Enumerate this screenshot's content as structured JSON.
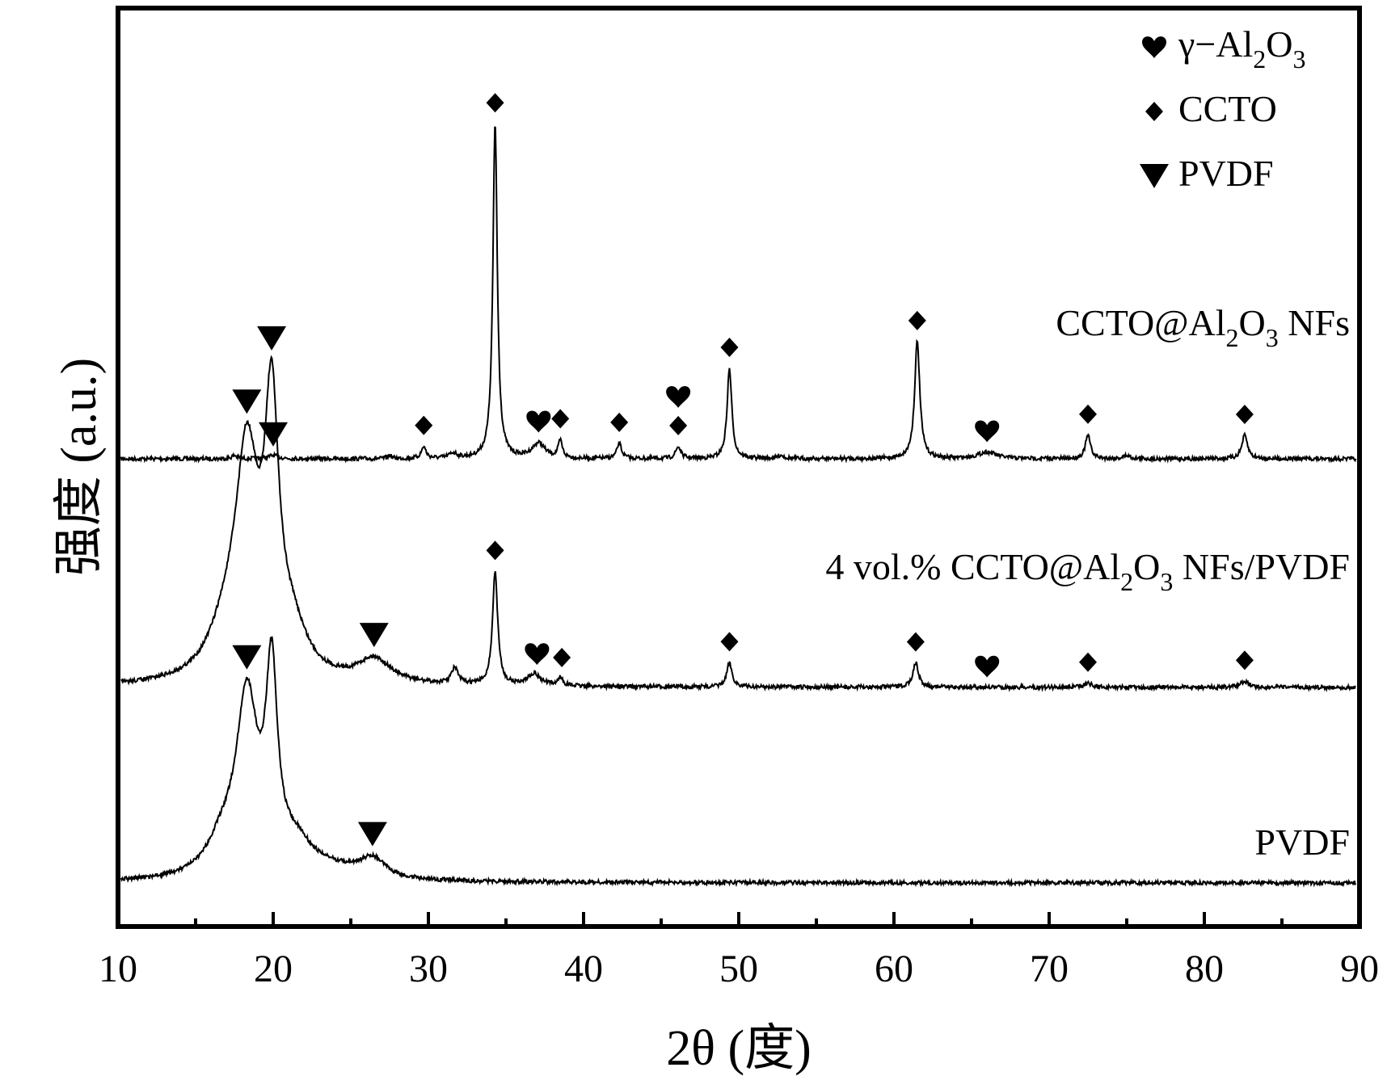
{
  "chart_data": {
    "type": "line",
    "xlabel": "2θ (度)",
    "ylabel": "强度 (a.u.)",
    "xlim": [
      10,
      90
    ],
    "x_ticks": [
      "10",
      "20",
      "30",
      "40",
      "50",
      "60",
      "70",
      "80",
      "90"
    ],
    "y_ticks": [],
    "grid": false,
    "legend": {
      "position": "top-right",
      "entries": [
        {
          "symbol": "heart",
          "label": "γ−Al",
          "sub1": "2",
          "mid": "O",
          "sub2": "3"
        },
        {
          "symbol": "diamond",
          "label": "CCTO"
        },
        {
          "symbol": "triangle-down",
          "label": "PVDF"
        }
      ]
    },
    "series": [
      {
        "label": "CCTO@Al",
        "label_sub1": "2",
        "label_mid": "O",
        "label_sub2": "3",
        "label_tail": " NFs",
        "baseline": 0.0,
        "peaks": [
          {
            "x": 17.5,
            "h": 0.01,
            "w": 0.2
          },
          {
            "x": 20.0,
            "h": 0.01,
            "w": 0.4
          },
          {
            "x": 27.5,
            "h": 0.01,
            "w": 0.15
          },
          {
            "x": 29.7,
            "h": 0.035,
            "w": 0.18
          },
          {
            "x": 31.6,
            "h": 0.015,
            "w": 0.3
          },
          {
            "x": 34.3,
            "h": 1.0,
            "w": 0.17
          },
          {
            "x": 37.1,
            "h": 0.045,
            "w": 0.5
          },
          {
            "x": 38.5,
            "h": 0.05,
            "w": 0.16
          },
          {
            "x": 42.3,
            "h": 0.045,
            "w": 0.18
          },
          {
            "x": 46.1,
            "h": 0.035,
            "w": 0.2
          },
          {
            "x": 49.4,
            "h": 0.27,
            "w": 0.18
          },
          {
            "x": 52.7,
            "h": 0.01,
            "w": 0.25
          },
          {
            "x": 61.5,
            "h": 0.35,
            "w": 0.2
          },
          {
            "x": 66.0,
            "h": 0.02,
            "w": 0.7
          },
          {
            "x": 72.5,
            "h": 0.07,
            "w": 0.2
          },
          {
            "x": 75.0,
            "h": 0.01,
            "w": 0.25
          },
          {
            "x": 82.6,
            "h": 0.07,
            "w": 0.22
          }
        ]
      },
      {
        "label": "4 vol.% CCTO@Al",
        "label_sub1": "2",
        "label_mid": "O",
        "label_sub2": "3",
        "label_tail": " NFs/PVDF",
        "baseline": 0.0,
        "peaks": [
          {
            "x": 18.3,
            "h": 0.52,
            "w": 0.9
          },
          {
            "x": 19.9,
            "h": 0.62,
            "w": 0.55
          },
          {
            "x": 17.0,
            "h": 0.1,
            "w": 1.4
          },
          {
            "x": 21.2,
            "h": 0.1,
            "w": 1.2
          },
          {
            "x": 26.5,
            "h": 0.06,
            "w": 1.3
          },
          {
            "x": 31.7,
            "h": 0.04,
            "w": 0.25
          },
          {
            "x": 34.3,
            "h": 0.28,
            "w": 0.2
          },
          {
            "x": 36.8,
            "h": 0.03,
            "w": 0.5
          },
          {
            "x": 38.5,
            "h": 0.02,
            "w": 0.2
          },
          {
            "x": 49.4,
            "h": 0.06,
            "w": 0.2
          },
          {
            "x": 61.4,
            "h": 0.06,
            "w": 0.22
          },
          {
            "x": 72.5,
            "h": 0.01,
            "w": 0.3
          },
          {
            "x": 82.6,
            "h": 0.015,
            "w": 0.3
          }
        ]
      },
      {
        "label": "PVDF",
        "baseline": 0.0,
        "peaks": [
          {
            "x": 18.3,
            "h": 0.72,
            "w": 0.85
          },
          {
            "x": 19.9,
            "h": 0.78,
            "w": 0.45
          },
          {
            "x": 16.7,
            "h": 0.12,
            "w": 1.2
          },
          {
            "x": 21.5,
            "h": 0.12,
            "w": 1.4
          },
          {
            "x": 24.0,
            "h": 0.03,
            "w": 2.0
          },
          {
            "x": 26.4,
            "h": 0.08,
            "w": 1.0
          }
        ]
      }
    ],
    "markers": [
      {
        "series": 0,
        "x": 20.0,
        "symbol": "triangle-down"
      },
      {
        "series": 0,
        "x": 29.7,
        "symbol": "diamond"
      },
      {
        "series": 0,
        "x": 34.3,
        "symbol": "diamond"
      },
      {
        "series": 0,
        "x": 37.1,
        "symbol": "heart"
      },
      {
        "series": 0,
        "x": 38.5,
        "symbol": "diamond"
      },
      {
        "series": 0,
        "x": 42.3,
        "symbol": "diamond"
      },
      {
        "series": 0,
        "x": 46.1,
        "symbol": "diamond"
      },
      {
        "series": 0,
        "x": 46.1,
        "symbol": "heart",
        "stack": 1
      },
      {
        "series": 0,
        "x": 49.4,
        "symbol": "diamond"
      },
      {
        "series": 0,
        "x": 61.5,
        "symbol": "diamond"
      },
      {
        "series": 0,
        "x": 66.0,
        "symbol": "heart"
      },
      {
        "series": 0,
        "x": 72.5,
        "symbol": "diamond"
      },
      {
        "series": 0,
        "x": 82.6,
        "symbol": "diamond"
      },
      {
        "series": 1,
        "x": 18.3,
        "symbol": "triangle-down"
      },
      {
        "series": 1,
        "x": 19.9,
        "symbol": "triangle-down"
      },
      {
        "series": 1,
        "x": 26.5,
        "symbol": "triangle-down"
      },
      {
        "series": 1,
        "x": 34.3,
        "symbol": "diamond"
      },
      {
        "series": 1,
        "x": 37.0,
        "symbol": "heart"
      },
      {
        "series": 1,
        "x": 38.6,
        "symbol": "diamond"
      },
      {
        "series": 1,
        "x": 49.4,
        "symbol": "diamond"
      },
      {
        "series": 1,
        "x": 61.4,
        "symbol": "diamond"
      },
      {
        "series": 1,
        "x": 66.0,
        "symbol": "heart"
      },
      {
        "series": 1,
        "x": 72.5,
        "symbol": "diamond"
      },
      {
        "series": 1,
        "x": 82.6,
        "symbol": "diamond"
      },
      {
        "series": 2,
        "x": 18.3,
        "symbol": "triangle-down"
      },
      {
        "series": 2,
        "x": 26.4,
        "symbol": "triangle-down"
      }
    ]
  }
}
